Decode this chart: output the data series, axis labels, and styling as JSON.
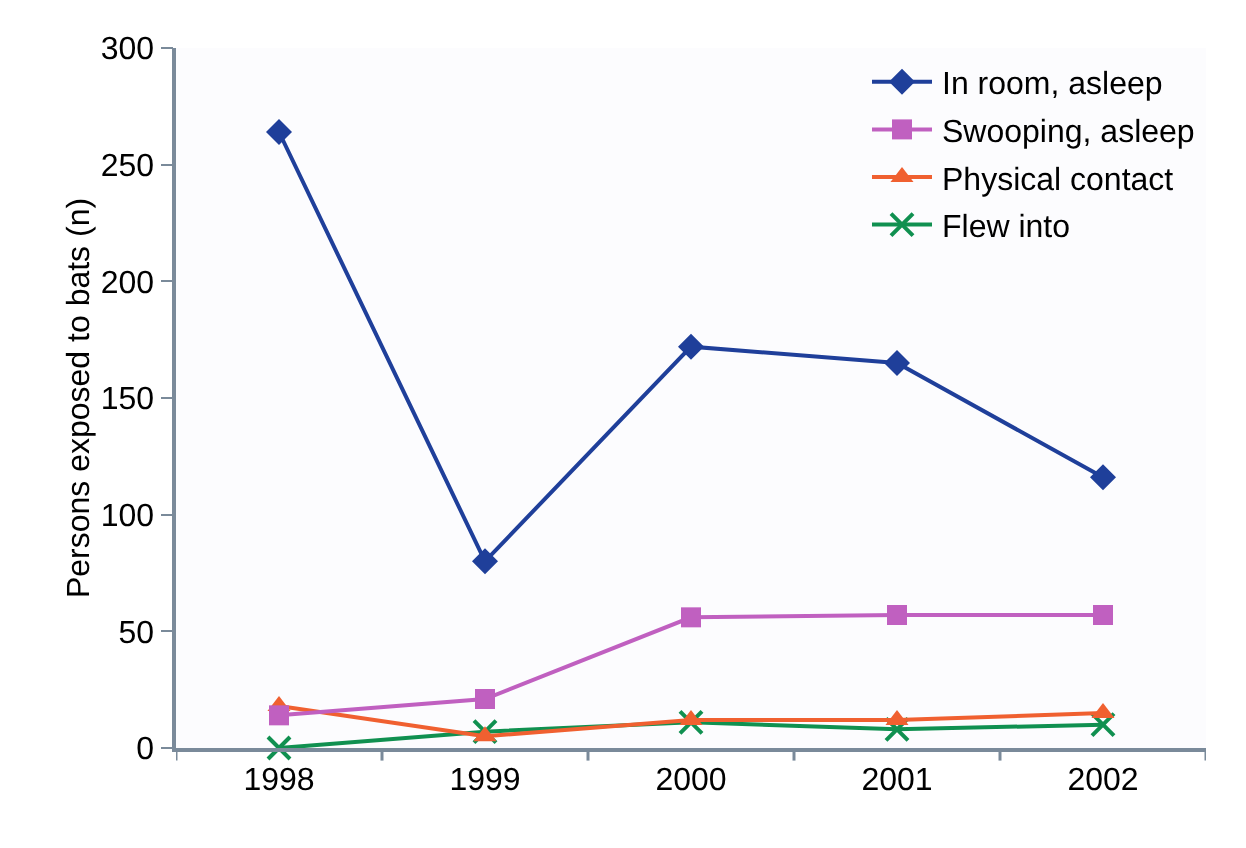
{
  "chart_data": {
    "type": "line",
    "ylabel": "Persons exposed to bats (n)",
    "categories": [
      "1998",
      "1999",
      "2000",
      "2001",
      "2002"
    ],
    "series": [
      {
        "name": "In room, asleep",
        "color": "#1f3f9a",
        "marker": "diamond",
        "values": [
          264,
          80,
          172,
          165,
          116
        ]
      },
      {
        "name": "Swooping, asleep",
        "color": "#c060c0",
        "marker": "square",
        "values": [
          14,
          21,
          56,
          57,
          57
        ]
      },
      {
        "name": "Physical contact",
        "color": "#f06030",
        "marker": "triangle",
        "values": [
          18,
          5,
          12,
          12,
          15
        ]
      },
      {
        "name": "Flew into",
        "color": "#109050",
        "marker": "cross",
        "values": [
          0,
          7,
          11,
          8,
          10
        ]
      }
    ],
    "ylim": [
      0,
      300
    ],
    "yticks": [
      0,
      50,
      100,
      150,
      200,
      250,
      300
    ],
    "grid": false,
    "legend": "top right",
    "line_style": "solid"
  }
}
